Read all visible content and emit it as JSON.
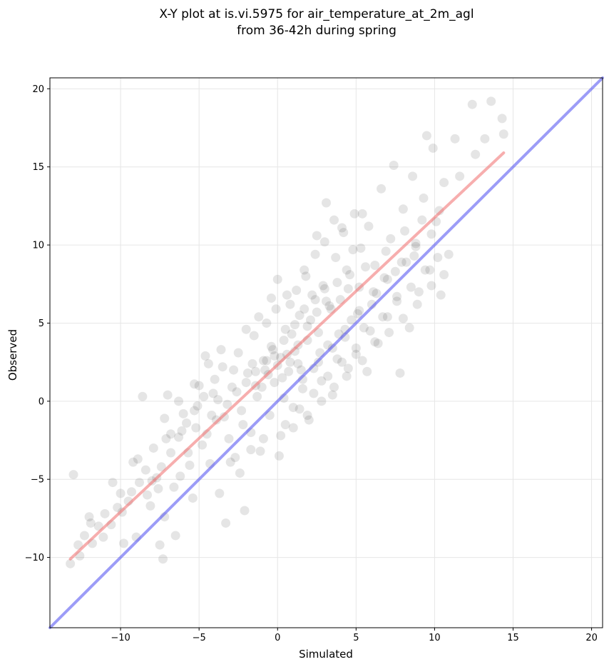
{
  "chart_data": {
    "type": "scatter",
    "title": "X-Y plot at is.vi.5975 for air_temperature_at_2m_agl",
    "subtitle": "from 36-42h during spring",
    "xlabel": "Simulated",
    "ylabel": "Observed",
    "xlim": [
      -14.5,
      20.7
    ],
    "ylim": [
      -14.5,
      20.7
    ],
    "x_ticks": [
      -10,
      -5,
      0,
      5,
      10,
      15,
      20
    ],
    "y_ticks": [
      -10,
      -5,
      0,
      5,
      10,
      15,
      20
    ],
    "x_tick_labels": [
      "−10",
      "−5",
      "0",
      "5",
      "10",
      "15",
      "20"
    ],
    "y_tick_labels": [
      "−10",
      "−5",
      "0",
      "5",
      "10",
      "15",
      "20"
    ],
    "grid": true,
    "point_color": "#000000",
    "point_alpha": 0.1,
    "points": [
      [
        -13.2,
        -10.4
      ],
      [
        -13.0,
        -4.7
      ],
      [
        -12.7,
        -9.2
      ],
      [
        -12.3,
        -8.6
      ],
      [
        -12.0,
        -7.4
      ],
      [
        -11.8,
        -9.1
      ],
      [
        -11.4,
        -8.0
      ],
      [
        -11.0,
        -7.2
      ],
      [
        -10.6,
        -7.9
      ],
      [
        -10.2,
        -6.8
      ],
      [
        -10.0,
        -5.9
      ],
      [
        -9.8,
        -9.1
      ],
      [
        -9.5,
        -6.4
      ],
      [
        -9.2,
        -3.9
      ],
      [
        -9.0,
        -8.7
      ],
      [
        -8.8,
        -5.2
      ],
      [
        -8.6,
        0.3
      ],
      [
        -8.4,
        -4.4
      ],
      [
        -8.1,
        -6.7
      ],
      [
        -7.9,
        -3.0
      ],
      [
        -7.6,
        -5.6
      ],
      [
        -7.5,
        -9.2
      ],
      [
        -7.3,
        -10.1
      ],
      [
        -7.2,
        -7.4
      ],
      [
        -7.0,
        0.4
      ],
      [
        -6.8,
        -2.1
      ],
      [
        -6.5,
        -8.6
      ],
      [
        -6.2,
        -4.8
      ],
      [
        -6.0,
        -0.8
      ],
      [
        -5.7,
        -3.3
      ],
      [
        -5.4,
        -6.2
      ],
      [
        -5.2,
        -1.7
      ],
      [
        -5.0,
        1.0
      ],
      [
        -4.8,
        -2.8
      ],
      [
        -4.6,
        2.9
      ],
      [
        -4.3,
        -4.0
      ],
      [
        -4.1,
        0.5
      ],
      [
        -3.9,
        -1.2
      ],
      [
        -3.7,
        -5.9
      ],
      [
        -3.5,
        2.2
      ],
      [
        -3.3,
        -7.8
      ],
      [
        -3.1,
        -2.4
      ],
      [
        -2.9,
        0.9
      ],
      [
        -2.7,
        -3.6
      ],
      [
        -2.5,
        3.1
      ],
      [
        -2.3,
        -0.6
      ],
      [
        -2.1,
        -7.0
      ],
      [
        -1.9,
        1.8
      ],
      [
        -1.7,
        -2.0
      ],
      [
        -1.5,
        4.2
      ],
      [
        -1.3,
        0.3
      ],
      [
        -1.1,
        -3.2
      ],
      [
        -0.9,
        2.6
      ],
      [
        -0.7,
        5.0
      ],
      [
        -0.5,
        -0.9
      ],
      [
        -0.4,
        3.5
      ],
      [
        -0.2,
        1.2
      ],
      [
        0.0,
        7.8
      ],
      [
        0.1,
        -3.5
      ],
      [
        0.2,
        2.8
      ],
      [
        0.4,
        0.2
      ],
      [
        0.5,
        4.6
      ],
      [
        0.7,
        1.9
      ],
      [
        0.8,
        6.2
      ],
      [
        1.0,
        -0.4
      ],
      [
        1.1,
        3.2
      ],
      [
        1.3,
        2.4
      ],
      [
        1.4,
        5.5
      ],
      [
        1.6,
        0.8
      ],
      [
        1.7,
        8.4
      ],
      [
        1.9,
        3.9
      ],
      [
        2.0,
        -1.2
      ],
      [
        2.2,
        6.8
      ],
      [
        2.3,
        2.1
      ],
      [
        2.5,
        10.6
      ],
      [
        2.6,
        4.4
      ],
      [
        2.8,
        1.3
      ],
      [
        2.9,
        7.4
      ],
      [
        3.1,
        12.7
      ],
      [
        3.2,
        3.6
      ],
      [
        3.4,
        5.9
      ],
      [
        3.5,
        0.4
      ],
      [
        3.7,
        9.2
      ],
      [
        3.8,
        2.7
      ],
      [
        4.0,
        6.5
      ],
      [
        4.1,
        11.1
      ],
      [
        4.3,
        4.1
      ],
      [
        4.4,
        1.6
      ],
      [
        4.6,
        8.1
      ],
      [
        4.7,
        5.2
      ],
      [
        4.9,
        12.0
      ],
      [
        5.0,
        3.0
      ],
      [
        5.2,
        7.3
      ],
      [
        5.3,
        9.8
      ],
      [
        5.5,
        4.7
      ],
      [
        5.7,
        1.9
      ],
      [
        5.8,
        11.2
      ],
      [
        6.0,
        6.2
      ],
      [
        6.2,
        8.7
      ],
      [
        6.4,
        3.7
      ],
      [
        6.6,
        13.6
      ],
      [
        6.8,
        7.9
      ],
      [
        7.0,
        5.4
      ],
      [
        7.2,
        10.4
      ],
      [
        7.4,
        15.1
      ],
      [
        7.6,
        6.7
      ],
      [
        7.8,
        1.8
      ],
      [
        8.0,
        12.3
      ],
      [
        8.2,
        8.9
      ],
      [
        8.4,
        4.7
      ],
      [
        8.6,
        14.4
      ],
      [
        8.8,
        10.1
      ],
      [
        9.0,
        7.0
      ],
      [
        9.3,
        13.0
      ],
      [
        9.5,
        17.0
      ],
      [
        9.7,
        8.4
      ],
      [
        9.9,
        16.2
      ],
      [
        10.1,
        11.5
      ],
      [
        10.4,
        6.8
      ],
      [
        10.6,
        14.0
      ],
      [
        10.9,
        9.4
      ],
      [
        11.3,
        16.8
      ],
      [
        11.6,
        14.4
      ],
      [
        12.4,
        19.0
      ],
      [
        12.6,
        15.8
      ],
      [
        13.2,
        16.8
      ],
      [
        13.6,
        19.2
      ],
      [
        14.3,
        18.1
      ],
      [
        14.4,
        17.1
      ],
      [
        -12.6,
        -9.9
      ],
      [
        -11.9,
        -7.8
      ],
      [
        -11.1,
        -8.7
      ],
      [
        -10.5,
        -5.2
      ],
      [
        -9.9,
        -7.1
      ],
      [
        -9.3,
        -5.8
      ],
      [
        -8.9,
        -3.7
      ],
      [
        -8.3,
        -6.0
      ],
      [
        -7.7,
        -4.9
      ],
      [
        -7.1,
        -2.4
      ],
      [
        -6.6,
        -5.5
      ],
      [
        -6.1,
        -1.9
      ],
      [
        -5.6,
        -4.1
      ],
      [
        -5.1,
        -0.3
      ],
      [
        -4.5,
        -2.1
      ],
      [
        -4.0,
        1.4
      ],
      [
        -3.4,
        -1.0
      ],
      [
        -2.8,
        2.0
      ],
      [
        -2.2,
        -1.5
      ],
      [
        -1.6,
        2.4
      ],
      [
        -1.0,
        0.9
      ],
      [
        -0.3,
        3.3
      ],
      [
        0.3,
        1.5
      ],
      [
        0.9,
        4.3
      ],
      [
        1.5,
        2.0
      ],
      [
        2.1,
        5.2
      ],
      [
        2.7,
        3.1
      ],
      [
        3.3,
        6.1
      ],
      [
        3.9,
        4.3
      ],
      [
        4.5,
        7.2
      ],
      [
        5.1,
        5.6
      ],
      [
        5.6,
        8.6
      ],
      [
        6.3,
        6.9
      ],
      [
        6.9,
        9.6
      ],
      [
        7.5,
        8.3
      ],
      [
        8.1,
        10.9
      ],
      [
        8.7,
        9.3
      ],
      [
        9.2,
        11.6
      ],
      [
        9.8,
        10.7
      ],
      [
        10.3,
        12.2
      ],
      [
        -0.1,
        5.9
      ],
      [
        0.6,
        6.8
      ],
      [
        1.2,
        7.1
      ],
      [
        1.8,
        8.0
      ],
      [
        2.4,
        9.4
      ],
      [
        3.0,
        10.2
      ],
      [
        3.6,
        11.6
      ],
      [
        4.2,
        10.8
      ],
      [
        4.8,
        9.7
      ],
      [
        5.4,
        12.0
      ],
      [
        0.2,
        -2.2
      ],
      [
        1.0,
        -1.7
      ],
      [
        1.9,
        -0.9
      ],
      [
        2.8,
        0.0
      ],
      [
        3.6,
        0.9
      ],
      [
        4.5,
        2.1
      ],
      [
        5.4,
        2.6
      ],
      [
        6.2,
        3.8
      ],
      [
        7.1,
        4.4
      ],
      [
        8.0,
        5.3
      ],
      [
        8.9,
        6.2
      ],
      [
        9.8,
        7.4
      ],
      [
        10.6,
        8.1
      ],
      [
        -2.0,
        4.6
      ],
      [
        -1.2,
        5.4
      ],
      [
        -0.4,
        6.6
      ],
      [
        -3.6,
        3.3
      ],
      [
        -4.4,
        2.4
      ],
      [
        -5.3,
        1.1
      ],
      [
        -6.3,
        0.0
      ],
      [
        -7.2,
        -1.1
      ],
      [
        -3.0,
        -3.9
      ],
      [
        -2.4,
        -4.6
      ],
      [
        -1.7,
        -3.1
      ],
      [
        -0.9,
        -2.4
      ],
      [
        0.5,
        -1.5
      ],
      [
        1.4,
        -0.5
      ],
      [
        2.3,
        0.5
      ],
      [
        3.2,
        1.6
      ],
      [
        4.1,
        2.5
      ],
      [
        5.0,
        3.4
      ],
      [
        5.9,
        4.5
      ],
      [
        6.7,
        5.4
      ],
      [
        7.6,
        6.4
      ],
      [
        8.5,
        7.3
      ],
      [
        9.4,
        8.4
      ],
      [
        10.2,
        9.2
      ],
      [
        -1.4,
        1.0
      ],
      [
        -0.6,
        1.7
      ],
      [
        0.0,
        2.3
      ],
      [
        0.6,
        3.0
      ],
      [
        1.3,
        3.6
      ],
      [
        1.9,
        4.8
      ],
      [
        2.5,
        5.7
      ],
      [
        3.1,
        6.4
      ],
      [
        3.8,
        7.6
      ],
      [
        4.4,
        8.4
      ],
      [
        0.4,
        3.9
      ],
      [
        1.1,
        4.9
      ],
      [
        1.7,
        5.9
      ],
      [
        2.4,
        6.5
      ],
      [
        3.0,
        7.2
      ],
      [
        -0.8,
        2.0
      ],
      [
        -0.2,
        2.9
      ],
      [
        0.8,
        2.5
      ],
      [
        1.6,
        1.4
      ],
      [
        2.6,
        2.5
      ],
      [
        3.5,
        3.4
      ],
      [
        4.3,
        4.6
      ],
      [
        5.2,
        5.8
      ],
      [
        6.1,
        7.0
      ],
      [
        7.0,
        7.8
      ],
      [
        7.9,
        8.9
      ],
      [
        8.8,
        9.9
      ],
      [
        -8.0,
        -5.1
      ],
      [
        -7.4,
        -4.2
      ],
      [
        -6.8,
        -3.3
      ],
      [
        -6.3,
        -2.3
      ],
      [
        -5.8,
        -1.4
      ],
      [
        -5.3,
        -0.6
      ],
      [
        -4.7,
        0.3
      ],
      [
        -4.2,
        -0.9
      ],
      [
        -3.8,
        0.1
      ],
      [
        -3.2,
        -0.2
      ],
      [
        -2.6,
        0.6
      ],
      [
        -2.0,
        1.2
      ],
      [
        -1.4,
        1.9
      ],
      [
        -0.7,
        2.6
      ]
    ],
    "lines": [
      {
        "color": "#4a4af0",
        "x": [
          -14.5,
          20.7
        ],
        "y": [
          -14.5,
          20.7
        ]
      },
      {
        "color": "#f06c6c",
        "x": [
          -13.2,
          14.4
        ],
        "y": [
          -10.1,
          15.9
        ]
      }
    ]
  }
}
